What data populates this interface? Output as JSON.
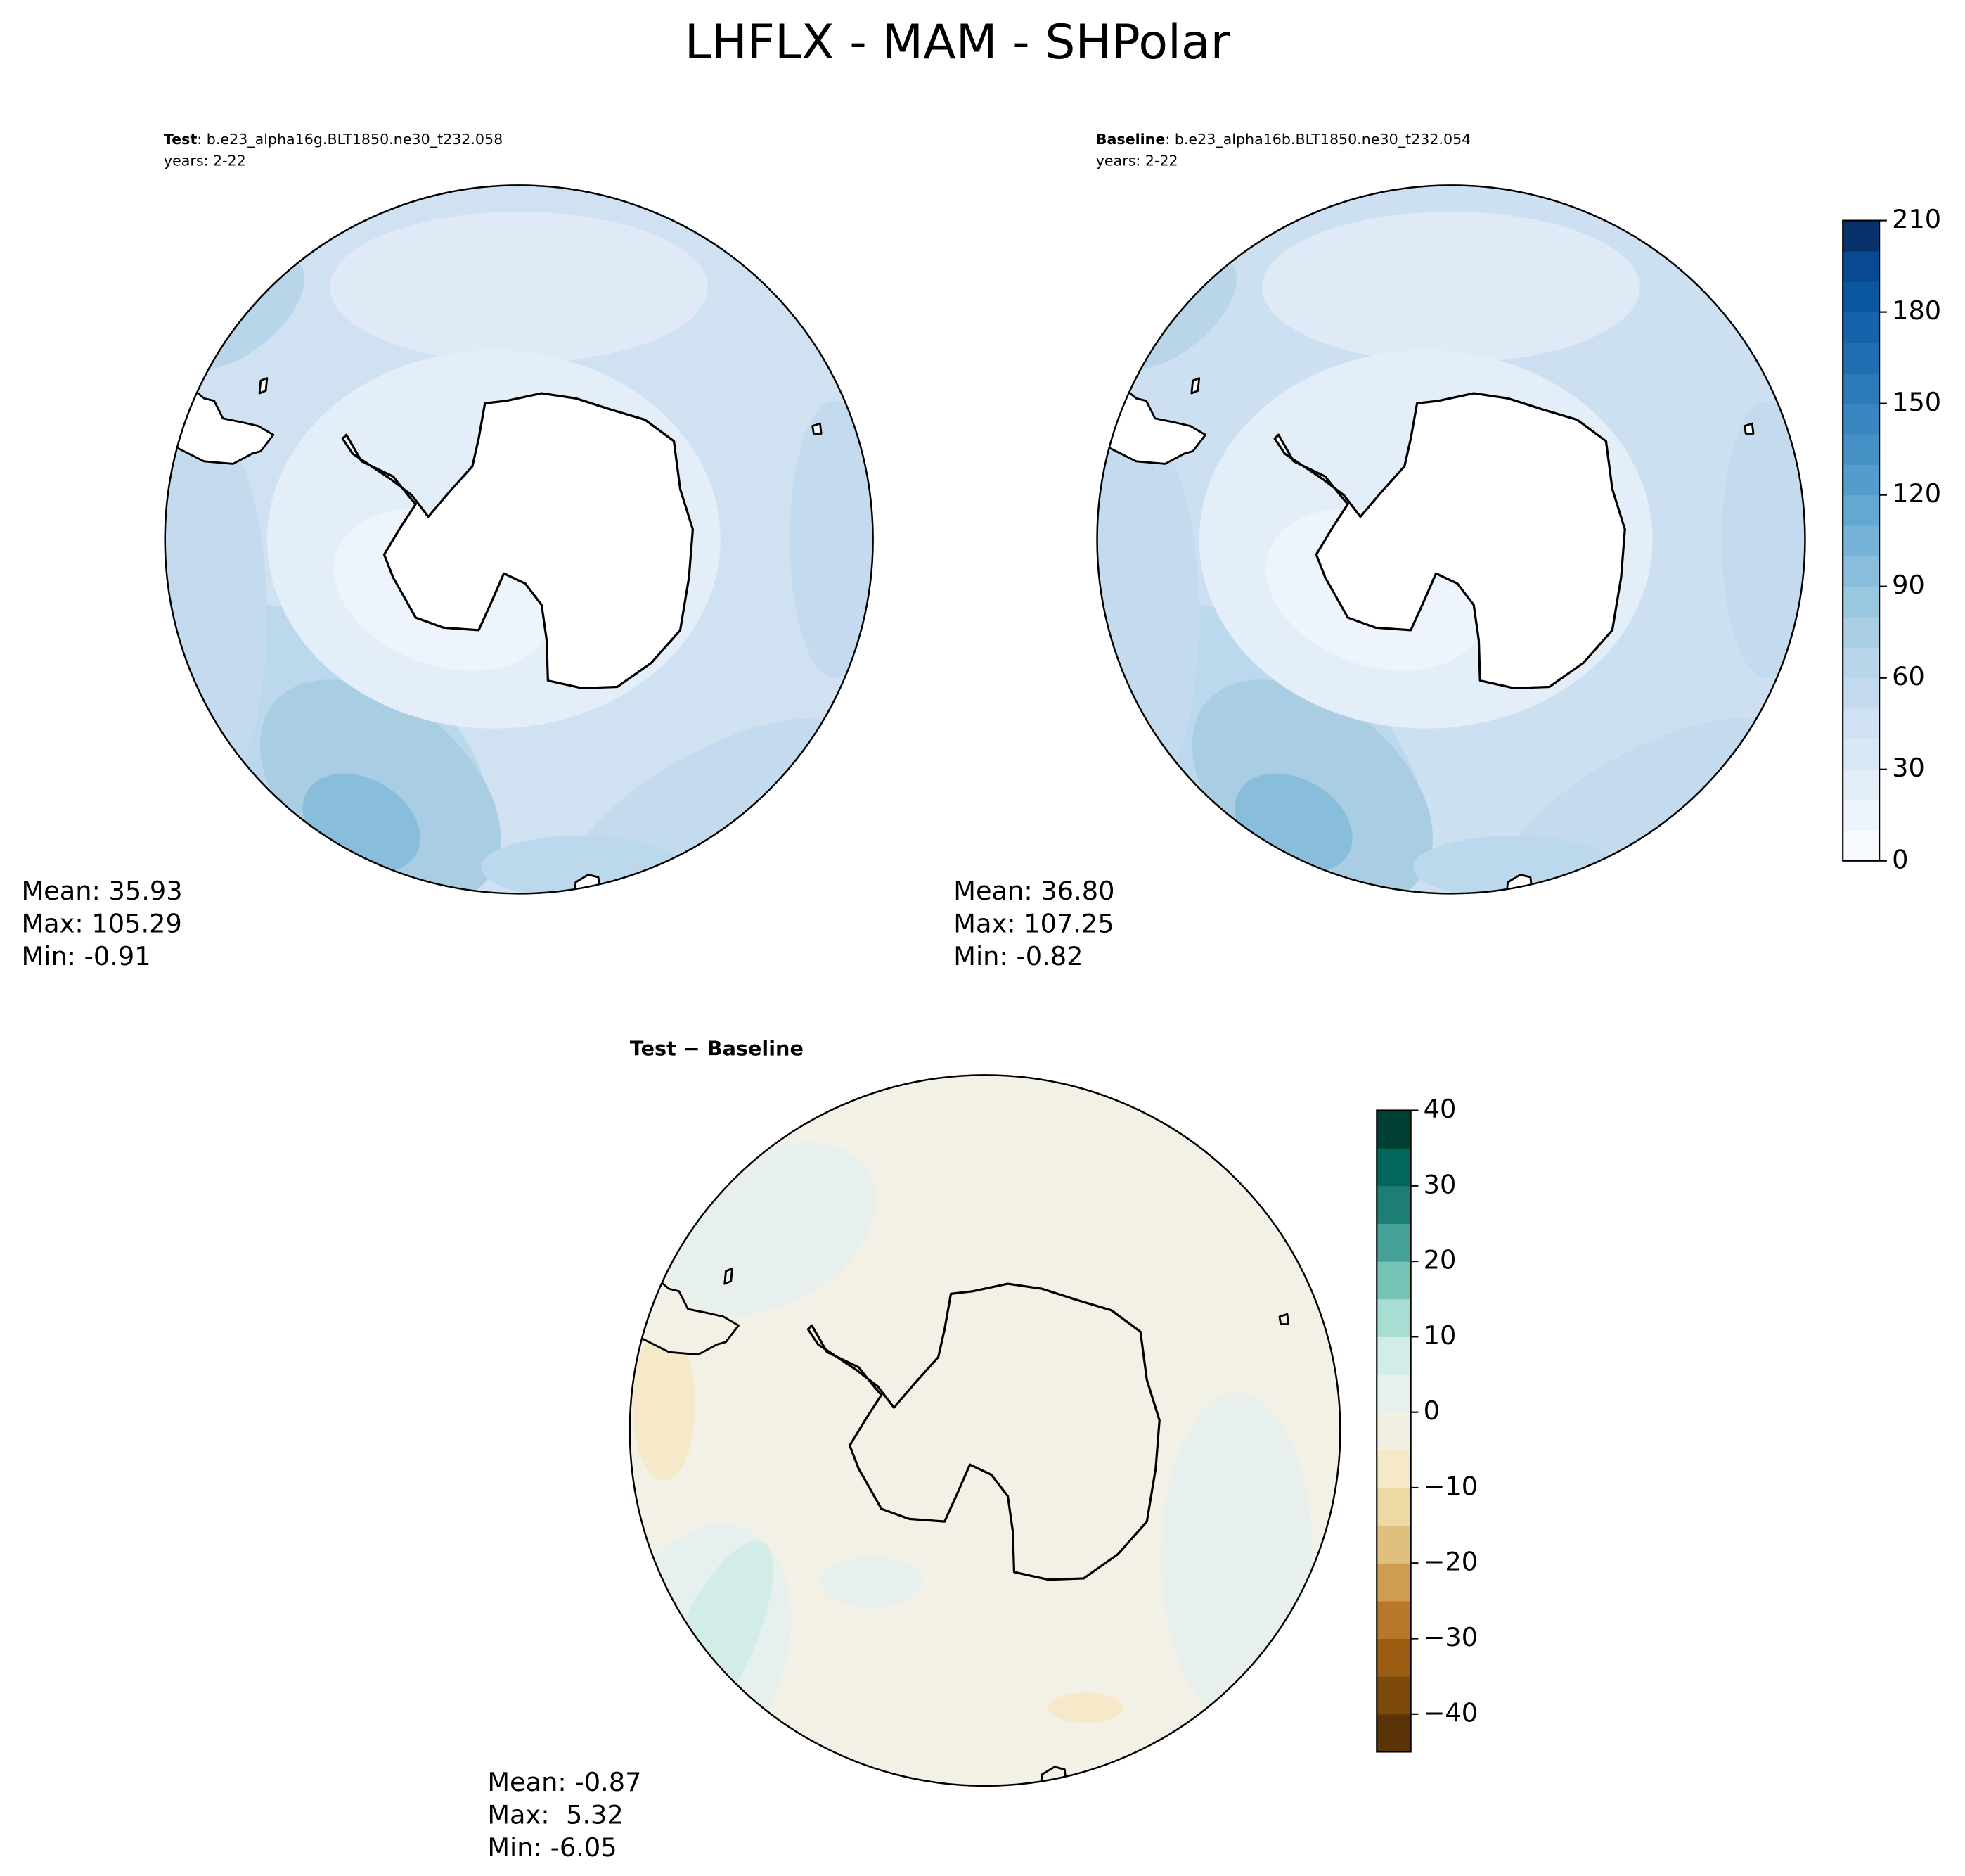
{
  "title": "LHFLX - MAM - SHPolar",
  "panels": [
    {
      "label": "Test",
      "case": ": b.e23_alpha16g.BLT1850.ne30_t232.058",
      "years": "years: 2-22",
      "stats": [
        "Mean: 35.93",
        "Max: 105.29",
        "Min: -0.91"
      ]
    },
    {
      "label": "Baseline",
      "case": ": b.e23_alpha16b.BLT1850.ne30_t232.054",
      "years": "years: 2-22",
      "stats": [
        "Mean: 36.80",
        "Max: 107.25",
        "Min: -0.82"
      ]
    },
    {
      "title": "Test − Baseline",
      "stats": [
        "Mean: -0.87",
        "Max:  5.32",
        "Min: -6.05"
      ]
    }
  ],
  "colorbars": [
    {
      "lim": [
        0,
        210
      ],
      "ticks": [
        0,
        30,
        60,
        90,
        120,
        150,
        180,
        210
      ],
      "colors": [
        "#f7fbff",
        "#edf4fc",
        "#e3eef9",
        "#d9e8f5",
        "#cfe1f2",
        "#c4dbef",
        "#b8d5ea",
        "#a9cee4",
        "#9ac7e0",
        "#88bedc",
        "#75b4d8",
        "#63a8d3",
        "#539dcc",
        "#4591c6",
        "#3885bf",
        "#2b7ab9",
        "#1f6eb2",
        "#1563aa",
        "#0b579f",
        "#084a91",
        "#08306b"
      ]
    },
    {
      "lim": [
        -45,
        40
      ],
      "ticks": [
        {
          "value": -40,
          "label": "−40"
        },
        {
          "value": -30,
          "label": "−30"
        },
        {
          "value": -20,
          "label": "−20"
        },
        {
          "value": -10,
          "label": "−10"
        },
        0,
        10,
        20,
        30,
        40
      ],
      "colors": [
        "#5a3407",
        "#7b4a0a",
        "#9a5d12",
        "#b8782a",
        "#cf9d50",
        "#dfc07c",
        "#edd9a4",
        "#f5e9c9",
        "#f2efe3",
        "#e6f0ee",
        "#d2ece7",
        "#a8ddd3",
        "#76c2b4",
        "#45a095",
        "#1d7f74",
        "#02665a",
        "#003f33"
      ]
    }
  ]
}
